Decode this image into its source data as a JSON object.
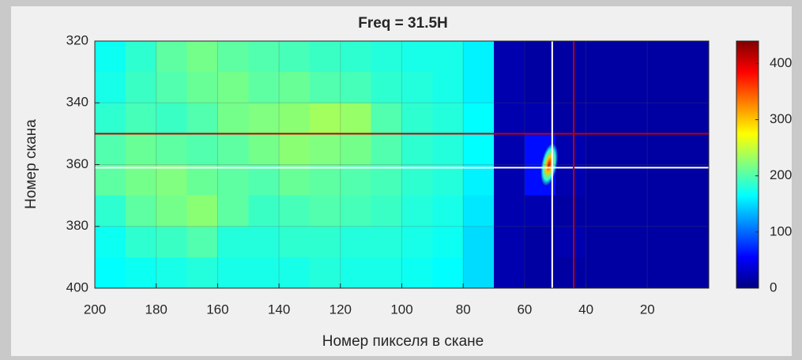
{
  "chart_data": {
    "type": "heatmap",
    "title": "Freq = 31.5H",
    "x_label": "Номер пикселя в скане",
    "y_label": "Номер скана",
    "xlim": [
      200,
      0
    ],
    "ylim": [
      320,
      400
    ],
    "xticks": [
      200,
      180,
      160,
      140,
      120,
      100,
      80,
      60,
      40,
      20
    ],
    "yticks": [
      320,
      340,
      360,
      380,
      400
    ],
    "grid": true,
    "x": [
      195,
      185,
      175,
      165,
      155,
      145,
      135,
      125,
      115,
      105,
      95,
      85,
      75,
      65,
      55,
      45,
      35,
      25,
      15,
      5
    ],
    "y": [
      325,
      335,
      345,
      355,
      365,
      375,
      385,
      395
    ],
    "z": [
      [
        170,
        185,
        205,
        215,
        205,
        200,
        195,
        190,
        185,
        180,
        175,
        175,
        160,
        20,
        15,
        15,
        15,
        15,
        15,
        15
      ],
      [
        175,
        190,
        200,
        210,
        215,
        205,
        210,
        200,
        195,
        185,
        180,
        175,
        160,
        20,
        15,
        15,
        15,
        15,
        15,
        15
      ],
      [
        185,
        195,
        190,
        200,
        215,
        220,
        225,
        235,
        230,
        200,
        185,
        180,
        165,
        20,
        20,
        15,
        15,
        15,
        15,
        15
      ],
      [
        200,
        210,
        205,
        200,
        205,
        215,
        225,
        220,
        215,
        200,
        185,
        180,
        165,
        20,
        60,
        20,
        15,
        15,
        15,
        15
      ],
      [
        205,
        215,
        220,
        210,
        205,
        200,
        210,
        205,
        200,
        195,
        185,
        180,
        160,
        20,
        60,
        20,
        15,
        15,
        15,
        15
      ],
      [
        185,
        205,
        215,
        225,
        205,
        190,
        195,
        200,
        195,
        190,
        180,
        175,
        155,
        20,
        20,
        15,
        15,
        15,
        15,
        15
      ],
      [
        170,
        185,
        190,
        200,
        180,
        180,
        185,
        185,
        180,
        180,
        175,
        170,
        150,
        20,
        15,
        20,
        15,
        15,
        15,
        15
      ],
      [
        165,
        170,
        175,
        180,
        175,
        175,
        175,
        180,
        175,
        175,
        170,
        165,
        150,
        20,
        15,
        15,
        15,
        15,
        15,
        15
      ]
    ],
    "peak": {
      "x": 52,
      "y": 360,
      "value": 400
    },
    "vlines": [
      {
        "x": 51,
        "color": "#ffffff"
      },
      {
        "x": 44,
        "color": "#c00000"
      }
    ],
    "hlines": [
      {
        "y": 361,
        "color": "#ffffff"
      },
      {
        "y": 350,
        "color": "#c00000"
      }
    ],
    "colormap": "jet",
    "clim": [
      0,
      440
    ],
    "cticks": [
      0,
      100,
      200,
      300,
      400
    ]
  }
}
